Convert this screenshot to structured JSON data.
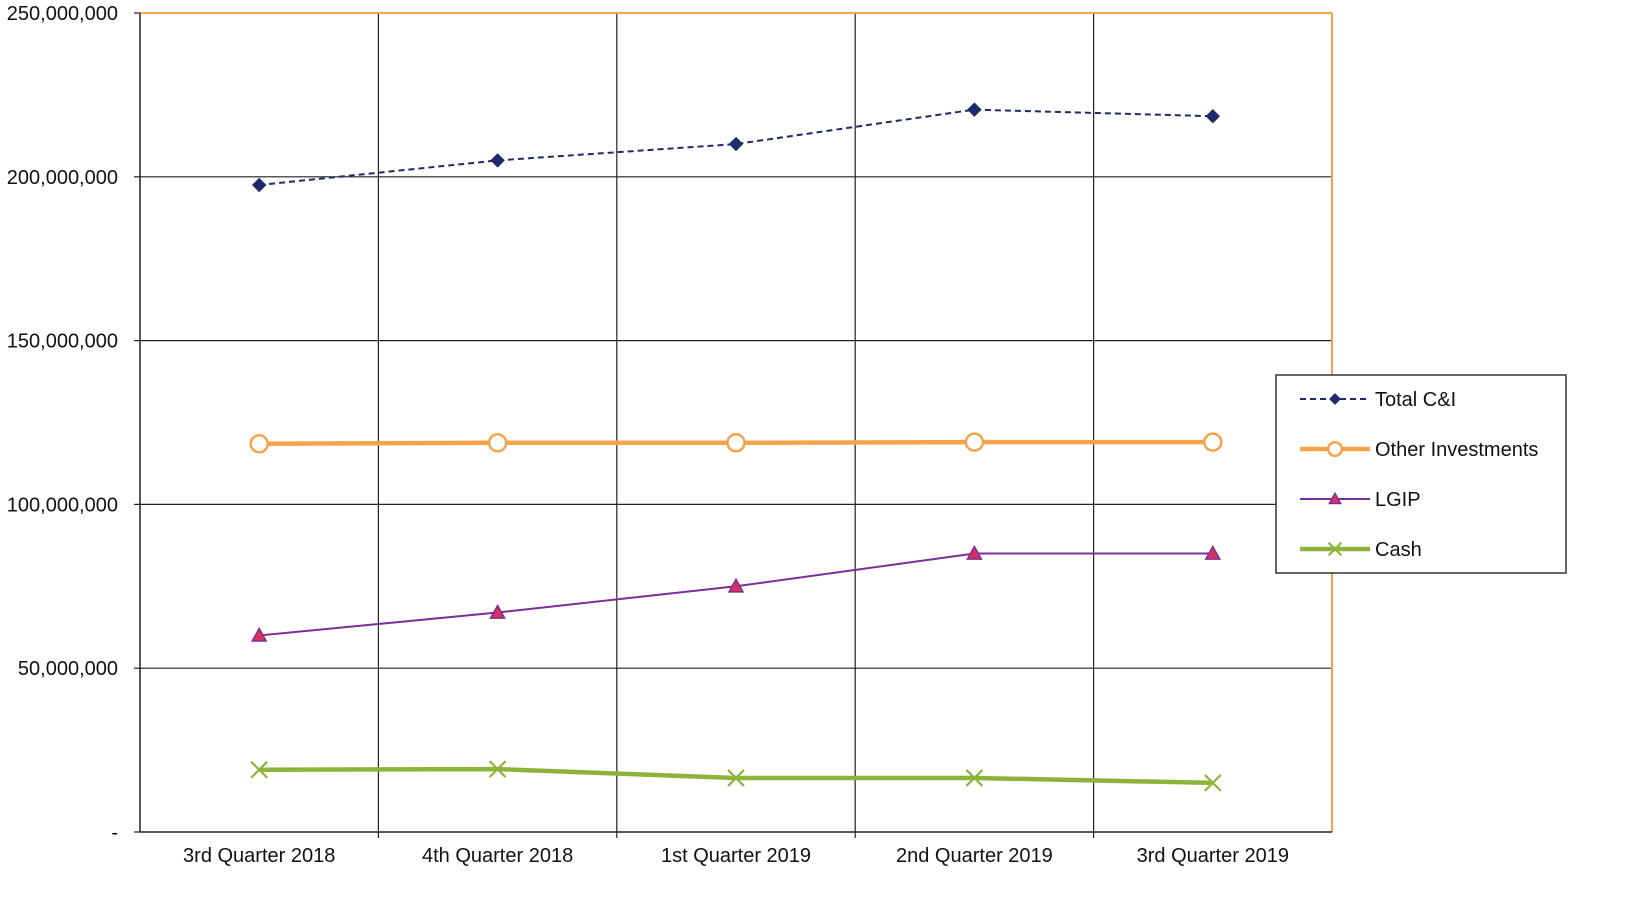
{
  "chart_data": {
    "type": "line",
    "categories": [
      "3rd Quarter 2018",
      "4th Quarter 2018",
      "1st Quarter 2019",
      "2nd Quarter 2019",
      "3rd Quarter 2019"
    ],
    "ylim": [
      0,
      250000000
    ],
    "yticks": [
      0,
      50000000,
      100000000,
      150000000,
      200000000,
      250000000
    ],
    "ytick_labels": [
      "-",
      "50,000,000",
      "100,000,000",
      "150,000,000",
      "200,000,000",
      "250,000,000"
    ],
    "grid": true,
    "legend_position": "right",
    "series": [
      {
        "name": "Total C&I",
        "color": "#1f2a6b",
        "marker": "diamond",
        "dash": "dashed",
        "values": [
          197500000,
          205000000,
          210000000,
          220500000,
          218500000
        ]
      },
      {
        "name": "Other Investments",
        "color": "#f5a24b",
        "marker": "circle",
        "dash": "solid",
        "values": [
          118500000,
          118800000,
          118800000,
          119000000,
          119000000
        ]
      },
      {
        "name": "LGIP",
        "color": "#7a2e9b",
        "marker": "triangle",
        "dash": "solid",
        "values": [
          60000000,
          67000000,
          75000000,
          85000000,
          85000000
        ]
      },
      {
        "name": "Cash",
        "color": "#8db43a",
        "marker": "x",
        "dash": "solid",
        "values": [
          19000000,
          19200000,
          16500000,
          16500000,
          15000000
        ]
      }
    ]
  }
}
